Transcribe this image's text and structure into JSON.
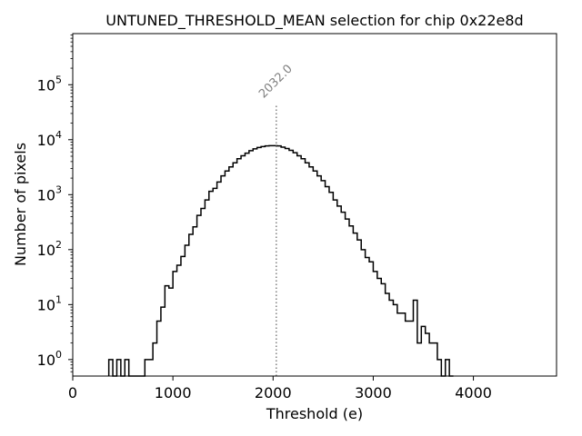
{
  "chart_data": {
    "type": "histogram-step",
    "title": "UNTUNED_THRESHOLD_MEAN selection for chip 0x22e8d",
    "xlabel": "Threshold (e)",
    "ylabel": "Number of pixels",
    "xlim": [
      0,
      4830
    ],
    "ylim_log10": [
      -0.3,
      5.93
    ],
    "yscale": "log",
    "x_ticks": [
      0,
      1000,
      2000,
      3000,
      4000
    ],
    "x_tick_labels": [
      "0",
      "1000",
      "2000",
      "3000",
      "4000"
    ],
    "y_tick_exponents": [
      0,
      1,
      2,
      3,
      4,
      5
    ],
    "y_tick_bases": [
      "10",
      "10",
      "10",
      "10",
      "10",
      "10"
    ],
    "y_tick_exps": [
      "0",
      "1",
      "2",
      "3",
      "4",
      "5"
    ],
    "bin_width": 40,
    "bins": [
      {
        "x": 360,
        "count": 1
      },
      {
        "x": 400,
        "count": 0
      },
      {
        "x": 440,
        "count": 1
      },
      {
        "x": 480,
        "count": 0
      },
      {
        "x": 520,
        "count": 1
      },
      {
        "x": 560,
        "count": 0
      },
      {
        "x": 600,
        "count": 0
      },
      {
        "x": 640,
        "count": 0
      },
      {
        "x": 680,
        "count": 0
      },
      {
        "x": 720,
        "count": 1
      },
      {
        "x": 760,
        "count": 1
      },
      {
        "x": 800,
        "count": 2
      },
      {
        "x": 840,
        "count": 5
      },
      {
        "x": 880,
        "count": 9
      },
      {
        "x": 920,
        "count": 22
      },
      {
        "x": 960,
        "count": 20
      },
      {
        "x": 1000,
        "count": 40
      },
      {
        "x": 1040,
        "count": 52
      },
      {
        "x": 1080,
        "count": 75
      },
      {
        "x": 1120,
        "count": 120
      },
      {
        "x": 1160,
        "count": 190
      },
      {
        "x": 1200,
        "count": 260
      },
      {
        "x": 1240,
        "count": 420
      },
      {
        "x": 1280,
        "count": 560
      },
      {
        "x": 1320,
        "count": 800
      },
      {
        "x": 1360,
        "count": 1150
      },
      {
        "x": 1400,
        "count": 1300
      },
      {
        "x": 1440,
        "count": 1700
      },
      {
        "x": 1480,
        "count": 2200
      },
      {
        "x": 1520,
        "count": 2700
      },
      {
        "x": 1560,
        "count": 3200
      },
      {
        "x": 1600,
        "count": 3800
      },
      {
        "x": 1640,
        "count": 4500
      },
      {
        "x": 1680,
        "count": 5100
      },
      {
        "x": 1720,
        "count": 5700
      },
      {
        "x": 1760,
        "count": 6300
      },
      {
        "x": 1800,
        "count": 6800
      },
      {
        "x": 1840,
        "count": 7200
      },
      {
        "x": 1880,
        "count": 7500
      },
      {
        "x": 1920,
        "count": 7700
      },
      {
        "x": 1960,
        "count": 7800
      },
      {
        "x": 2000,
        "count": 7800
      },
      {
        "x": 2040,
        "count": 7700
      },
      {
        "x": 2080,
        "count": 7300
      },
      {
        "x": 2120,
        "count": 6900
      },
      {
        "x": 2160,
        "count": 6400
      },
      {
        "x": 2200,
        "count": 5800
      },
      {
        "x": 2240,
        "count": 5100
      },
      {
        "x": 2280,
        "count": 4500
      },
      {
        "x": 2320,
        "count": 3800
      },
      {
        "x": 2360,
        "count": 3200
      },
      {
        "x": 2400,
        "count": 2700
      },
      {
        "x": 2440,
        "count": 2200
      },
      {
        "x": 2480,
        "count": 1800
      },
      {
        "x": 2520,
        "count": 1400
      },
      {
        "x": 2560,
        "count": 1100
      },
      {
        "x": 2600,
        "count": 800
      },
      {
        "x": 2640,
        "count": 620
      },
      {
        "x": 2680,
        "count": 480
      },
      {
        "x": 2720,
        "count": 360
      },
      {
        "x": 2760,
        "count": 270
      },
      {
        "x": 2800,
        "count": 200
      },
      {
        "x": 2840,
        "count": 150
      },
      {
        "x": 2880,
        "count": 100
      },
      {
        "x": 2920,
        "count": 72
      },
      {
        "x": 2960,
        "count": 60
      },
      {
        "x": 3000,
        "count": 40
      },
      {
        "x": 3040,
        "count": 30
      },
      {
        "x": 3080,
        "count": 24
      },
      {
        "x": 3120,
        "count": 16
      },
      {
        "x": 3160,
        "count": 12
      },
      {
        "x": 3200,
        "count": 10
      },
      {
        "x": 3240,
        "count": 7
      },
      {
        "x": 3280,
        "count": 7
      },
      {
        "x": 3320,
        "count": 5
      },
      {
        "x": 3360,
        "count": 5
      },
      {
        "x": 3400,
        "count": 12
      },
      {
        "x": 3440,
        "count": 2
      },
      {
        "x": 3480,
        "count": 4
      },
      {
        "x": 3520,
        "count": 3
      },
      {
        "x": 3560,
        "count": 2
      },
      {
        "x": 3600,
        "count": 2
      },
      {
        "x": 3640,
        "count": 1
      },
      {
        "x": 3680,
        "count": 0
      },
      {
        "x": 3720,
        "count": 1
      },
      {
        "x": 3760,
        "count": 0
      }
    ],
    "vline": {
      "x": 2032.0,
      "label": "2032.0",
      "ymax_log10": 4.65
    },
    "grid": false,
    "line_color": "#000000",
    "vline_color": "#808080"
  }
}
